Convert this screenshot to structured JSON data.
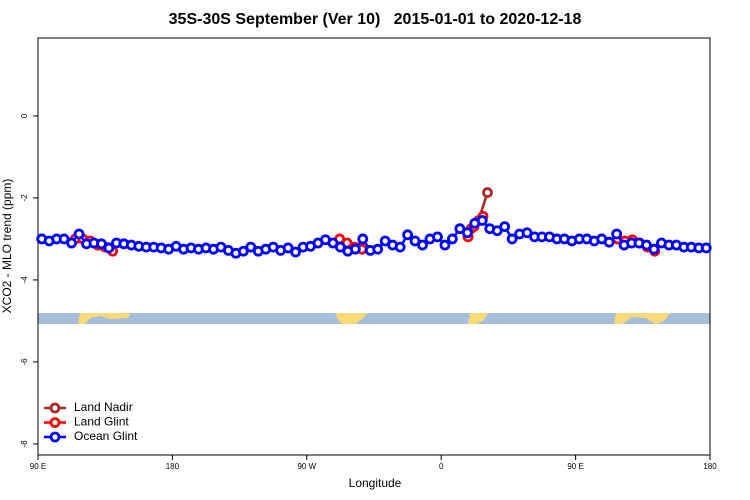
{
  "chart_data": {
    "type": "line",
    "title": "35S-30S September (Ver 10)   2015-01-01 to 2020-12-18",
    "xlabel": "Longitude",
    "ylabel": "XCO2 - MLO trend (ppm)",
    "xlim": [
      90,
      540
    ],
    "xticks": [
      {
        "value": 90,
        "label": "90 E"
      },
      180,
      {
        "value": 270,
        "label": "90 W"
      },
      {
        "value": 360,
        "label": "0"
      },
      {
        "value": 450,
        "label": "90 E"
      },
      {
        "value": 540,
        "label": "180"
      }
    ],
    "ylim": [
      -8.27,
      1.9
    ],
    "yticks": [
      0,
      -2,
      -4,
      -6,
      -8
    ],
    "legend": "bottom-left",
    "series": [
      {
        "name": "Land Nadir",
        "color": "#a52a2a",
        "x": [
          380,
          385,
          391
        ],
        "values": [
          -2.75,
          -2.55,
          -1.87
        ]
      },
      {
        "name": "Land Glint",
        "color": "#ff0000",
        "x": [
          115,
          120,
          125,
          130,
          135,
          140,
          200,
          292,
          297,
          302,
          307,
          350,
          378,
          382,
          388,
          440,
          478,
          483,
          488,
          493,
          498,
          503
        ],
        "values": [
          -3.0,
          -3.0,
          -3.05,
          -3.15,
          -3.2,
          -3.3,
          null,
          -3.0,
          -3.1,
          -3.2,
          -3.25,
          null,
          -2.95,
          -2.7,
          -2.45,
          null,
          -3.0,
          -3.05,
          -3.02,
          -3.1,
          -3.2,
          -3.3
        ]
      },
      {
        "name": "Ocean Glint",
        "color": "#0000ff",
        "x": [
          92.5,
          97.5,
          102.5,
          107.5,
          112.5,
          117.5,
          122.5,
          127.5,
          132.5,
          137.5,
          142.5,
          147.5,
          152.5,
          157.5,
          162.5,
          167.5,
          172.5,
          177.5,
          182.5,
          187.5,
          192.5,
          197.5,
          202.5,
          207.5,
          212.5,
          217.5,
          222.5,
          227.5,
          232.5,
          237.5,
          242.5,
          247.5,
          252.5,
          257.5,
          262.5,
          267.5,
          272.5,
          277.5,
          282.5,
          287.5,
          292.5,
          297.5,
          302.5,
          307.5,
          312.5,
          317.5,
          322.5,
          327.5,
          332.5,
          337.5,
          342.5,
          347.5,
          352.5,
          357.5,
          362.5,
          367.5,
          372.5,
          377.5,
          382.5,
          387.5,
          392.5,
          397.5,
          402.5,
          407.5,
          412.5,
          417.5,
          422.5,
          427.5,
          432.5,
          437.5,
          442.5,
          447.5,
          452.5,
          457.5,
          462.5,
          467.5,
          472.5,
          477.5,
          482.5,
          487.5,
          492.5,
          497.5,
          502.5,
          507.5,
          512.5,
          517.5,
          522.5,
          527.5,
          532.5,
          537.5
        ],
        "values": [
          -3.0,
          -3.05,
          -3.0,
          -3.0,
          -3.1,
          -2.88,
          -3.12,
          -3.1,
          -3.12,
          -3.22,
          -3.1,
          -3.12,
          -3.15,
          -3.18,
          -3.2,
          -3.2,
          -3.22,
          -3.25,
          -3.18,
          -3.25,
          -3.22,
          -3.25,
          -3.22,
          -3.25,
          -3.2,
          -3.28,
          -3.35,
          -3.3,
          -3.2,
          -3.3,
          -3.25,
          -3.2,
          -3.28,
          -3.22,
          -3.32,
          -3.2,
          -3.18,
          -3.1,
          -3.02,
          -3.1,
          -3.2,
          -3.3,
          -3.25,
          -3.0,
          -3.28,
          -3.25,
          -3.05,
          -3.15,
          -3.2,
          -2.9,
          -3.05,
          -3.15,
          -3.0,
          -2.95,
          -3.15,
          -3.0,
          -2.75,
          -2.85,
          -2.62,
          -2.55,
          -2.75,
          -2.8,
          -2.7,
          -3.0,
          -2.88,
          -2.85,
          -2.95,
          -2.95,
          -2.95,
          -3.0,
          -3.0,
          -3.05,
          -3.0,
          -3.0,
          -3.05,
          -3.0,
          -3.08,
          -2.88,
          -3.15,
          -3.1,
          -3.1,
          -3.15,
          -3.25,
          -3.1,
          -3.15,
          -3.15,
          -3.2,
          -3.2,
          -3.22,
          -3.22
        ]
      }
    ]
  }
}
